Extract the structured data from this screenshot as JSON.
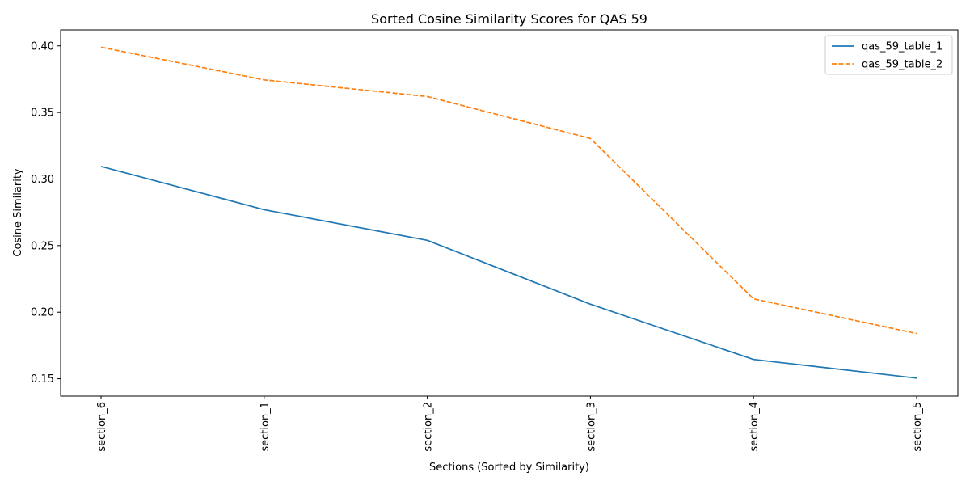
{
  "chart_data": {
    "type": "line",
    "title": "Sorted Cosine Similarity Scores for QAS 59",
    "xlabel": "Sections (Sorted by Similarity)",
    "ylabel": "Cosine Similarity",
    "categories": [
      "section_6",
      "section_1",
      "section_2",
      "section_3",
      "section_4",
      "section_5"
    ],
    "ylim": [
      0.137,
      0.412
    ],
    "yticks": [
      0.15,
      0.2,
      0.25,
      0.3,
      0.35,
      0.4
    ],
    "ytick_labels": [
      "0.15",
      "0.20",
      "0.25",
      "0.30",
      "0.35",
      "0.40"
    ],
    "grid": false,
    "legend_position": "top-right",
    "series": [
      {
        "name": "qas_59_table_1",
        "values": [
          0.3095,
          0.277,
          0.254,
          0.206,
          0.1645,
          0.1505
        ],
        "color": "#1f77b4",
        "style": "solid"
      },
      {
        "name": "qas_59_table_2",
        "values": [
          0.399,
          0.3745,
          0.362,
          0.3305,
          0.21,
          0.184
        ],
        "color": "#ff7f0e",
        "style": "dashed"
      }
    ]
  }
}
